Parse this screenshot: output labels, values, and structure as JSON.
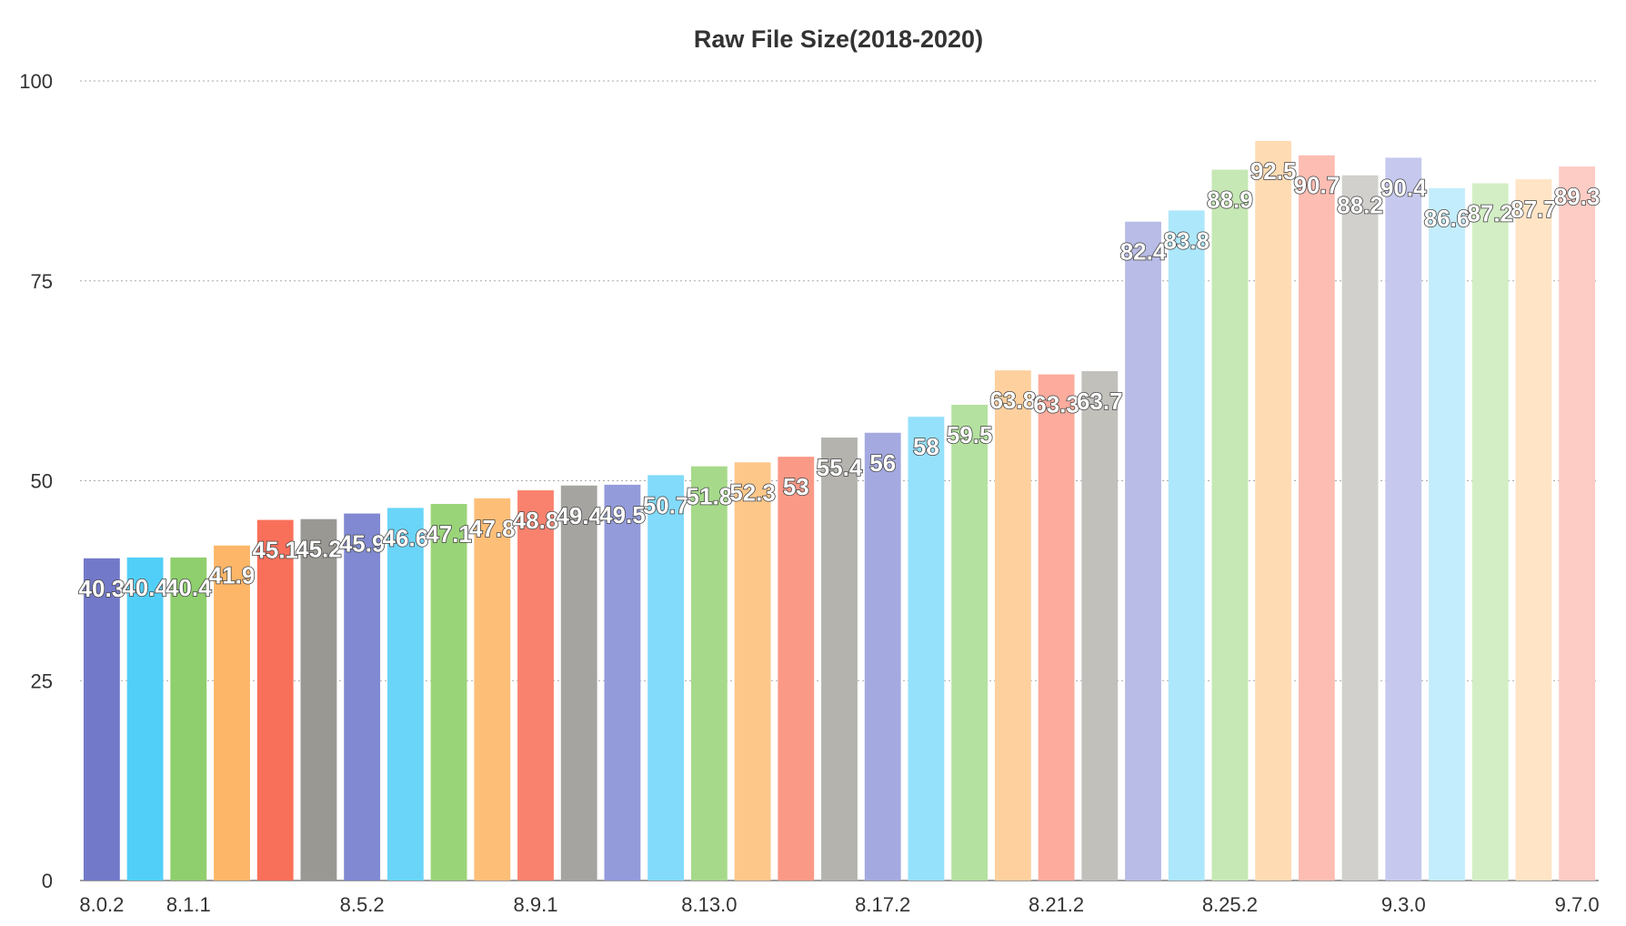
{
  "chart_data": {
    "type": "bar",
    "title": "Raw File Size(2018-2020)",
    "xlabel": "",
    "ylabel": "",
    "ylim": [
      0,
      100
    ],
    "yticks": [
      0,
      25,
      50,
      75,
      100
    ],
    "grid": true,
    "legend": "none",
    "x_tick_labels": [
      {
        "index": 0,
        "label": "8.0.2"
      },
      {
        "index": 2,
        "label": "8.1.1"
      },
      {
        "index": 6,
        "label": "8.5.2"
      },
      {
        "index": 10,
        "label": "8.9.1"
      },
      {
        "index": 14,
        "label": "8.13.0"
      },
      {
        "index": 18,
        "label": "8.17.2"
      },
      {
        "index": 22,
        "label": "8.21.2"
      },
      {
        "index": 26,
        "label": "8.25.2"
      },
      {
        "index": 30,
        "label": "9.3.0"
      },
      {
        "index": 34,
        "label": "9.7.0"
      }
    ],
    "values": [
      40.3,
      40.4,
      40.4,
      41.9,
      45.1,
      45.2,
      45.9,
      46.6,
      47.1,
      47.8,
      48.8,
      49.4,
      49.5,
      50.7,
      51.8,
      52.3,
      53,
      55.4,
      56,
      58,
      59.5,
      63.8,
      63.3,
      63.7,
      82.4,
      83.8,
      88.9,
      92.5,
      90.7,
      88.2,
      90.4,
      86.6,
      87.2,
      87.7,
      89.3
    ],
    "data_labels": [
      "40.3",
      "40.4",
      "40.4",
      "41.9",
      "45.1",
      "45.2",
      "45.9",
      "46.6",
      "47.1",
      "47.8",
      "48.8",
      "49.4",
      "49.5",
      "50.7",
      "51.8",
      "52.3",
      "53",
      "55.4",
      "56",
      "58",
      "59.5",
      "63.8",
      "63.3",
      "63.7",
      "82.4",
      "83.8",
      "88.9",
      "92.5",
      "90.7",
      "88.2",
      "90.4",
      "86.6",
      "87.2",
      "87.7",
      "89.3"
    ],
    "colors": [
      "#7279c9",
      "#52cff8",
      "#8fcf6e",
      "#fdb668",
      "#f9705a",
      "#9a9893",
      "#8089d1",
      "#6ad5f8",
      "#9ad479",
      "#fdbe78",
      "#f9826e",
      "#a6a4a0",
      "#939bdb",
      "#82dbfa",
      "#a6da8a",
      "#fec78a",
      "#fb9987",
      "#b5b3ad",
      "#a4aae0",
      "#95e1fb",
      "#b4e19f",
      "#fed09e",
      "#fcab9d",
      "#c2c0bb",
      "#b8bce6",
      "#ade7fb",
      "#c6e8b5",
      "#ffdbb3",
      "#fdbdb2",
      "#d2d0cc",
      "#c6c9ed",
      "#c3edfc",
      "#d3eec5",
      "#ffe4c5",
      "#fdccc4"
    ]
  }
}
